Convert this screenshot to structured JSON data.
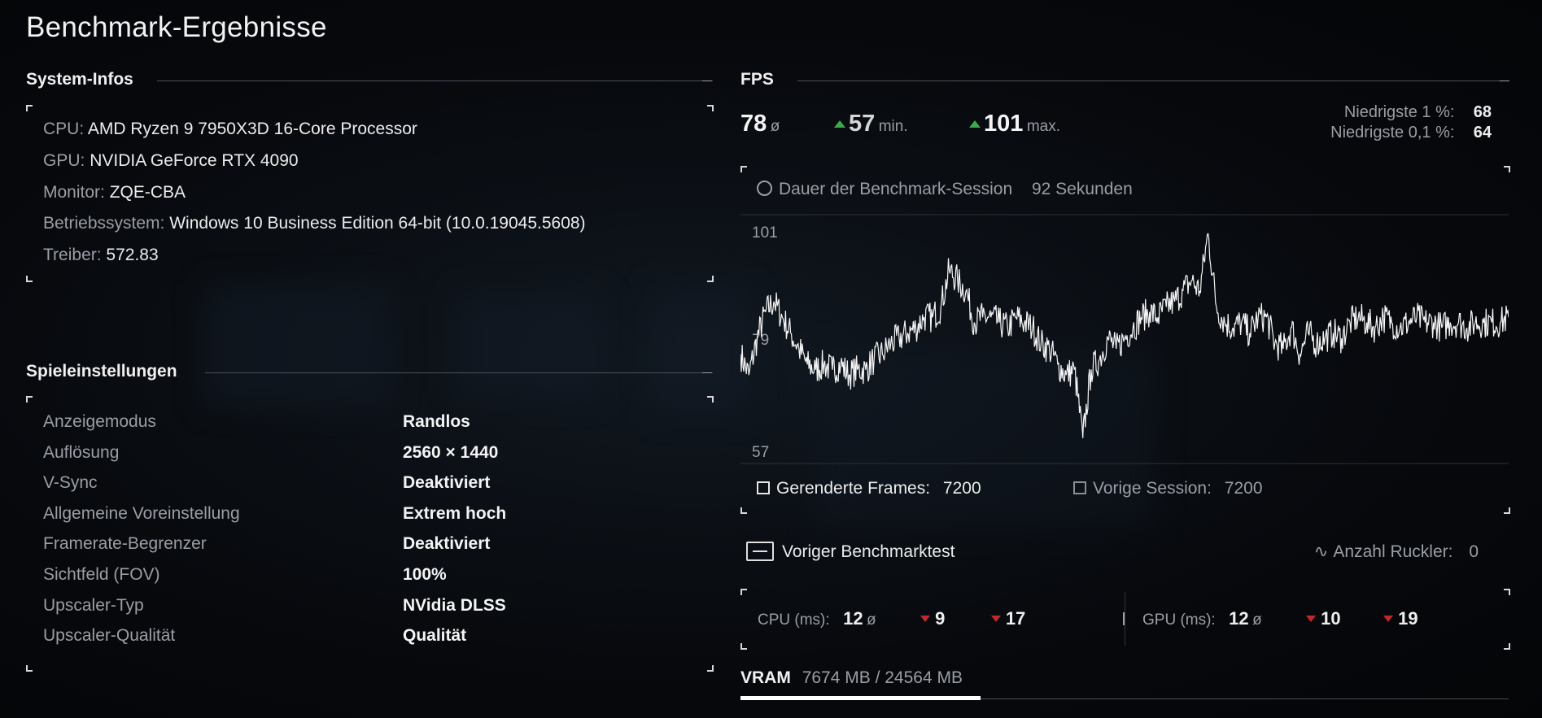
{
  "page_title": "Benchmark-Ergebnisse",
  "system": {
    "heading": "System-Infos",
    "rows": [
      {
        "label": "CPU:",
        "value": "AMD Ryzen 9 7950X3D 16-Core Processor"
      },
      {
        "label": "GPU:",
        "value": "NVIDIA GeForce RTX 4090"
      },
      {
        "label": "Monitor:",
        "value": "ZQE-CBA"
      },
      {
        "label": "Betriebssystem:",
        "value": "Windows 10 Business Edition 64-bit (10.0.19045.5608)"
      },
      {
        "label": "Treiber:",
        "value": "572.83"
      }
    ]
  },
  "settings": {
    "heading": "Spieleinstellungen",
    "rows": [
      {
        "label": "Anzeigemodus",
        "value": "Randlos"
      },
      {
        "label": "Auflösung",
        "value": "2560 × 1440"
      },
      {
        "label": "V-Sync",
        "value": "Deaktiviert"
      },
      {
        "label": "Allgemeine Voreinstellung",
        "value": "Extrem hoch"
      },
      {
        "label": "Framerate-Begrenzer",
        "value": "Deaktiviert"
      },
      {
        "label": "Sichtfeld (FOV)",
        "value": "100%"
      },
      {
        "label": "Upscaler-Typ",
        "value": "NVidia DLSS"
      },
      {
        "label": "Upscaler-Qualität",
        "value": "Qualität"
      }
    ]
  },
  "fps": {
    "heading": "FPS",
    "avg": "78",
    "avg_unit": "ø",
    "min": "57",
    "min_unit": "min.",
    "max": "101",
    "max_unit": "max.",
    "low1_label": "Niedrigste 1 %:",
    "low1_value": "68",
    "low01_label": "Niedrigste 0,1 %:",
    "low01_value": "64",
    "session_label": "Dauer der Benchmark-Session",
    "session_value": "92 Sekunden",
    "axis_top": "101",
    "axis_mid": "79",
    "axis_bottom": "57",
    "rendered_label": "Gerenderte Frames:",
    "rendered_value": "7200",
    "prev_label": "Vorige Session:",
    "prev_value": "7200"
  },
  "previous": {
    "button_label": "Voriger Benchmarktest",
    "stutter_label": "Anzahl Ruckler:",
    "stutter_value": "0"
  },
  "frametimes": {
    "cpu_label": "CPU (ms):",
    "cpu_avg": "12",
    "cpu_avg_unit": "ø",
    "cpu_low": "9",
    "cpu_high": "17",
    "gpu_label": "GPU (ms):",
    "gpu_avg": "12",
    "gpu_avg_unit": "ø",
    "gpu_low": "10",
    "gpu_high": "19"
  },
  "vram": {
    "label": "VRAM",
    "value": "7674 MB / 24564 MB",
    "used_fraction": 0.3124
  },
  "colors": {
    "up": "#3fa84e",
    "down": "#c0282c",
    "accent": "#ffffff"
  },
  "chart_data": {
    "type": "line",
    "title": "",
    "xlabel": "",
    "ylabel": "",
    "ylim": [
      57,
      101
    ],
    "yticks": [
      101,
      79,
      57
    ],
    "x_range_seconds": [
      0,
      92
    ],
    "series": [
      {
        "x": [
          0,
          1,
          2,
          3,
          4,
          5,
          6,
          7,
          8,
          9,
          10,
          11,
          12,
          13,
          14,
          15,
          16,
          17,
          18,
          19,
          20,
          21,
          22,
          23,
          24,
          25,
          26,
          27,
          28,
          29,
          30,
          31,
          32,
          33,
          34,
          35,
          36,
          37,
          38,
          39,
          40,
          41,
          42,
          43,
          44,
          45,
          46,
          47,
          48,
          49,
          50,
          51,
          52,
          53,
          54,
          55,
          56,
          57,
          58,
          59,
          60,
          61,
          62,
          63,
          64,
          65,
          66,
          67,
          68,
          69,
          70,
          71,
          72,
          73,
          74,
          75,
          76,
          77,
          78,
          79,
          80,
          81,
          82,
          83,
          84,
          85,
          86,
          87,
          88,
          89,
          90,
          91,
          92
        ],
        "values": [
          76,
          72,
          79,
          84,
          86,
          83,
          80,
          77,
          74,
          73,
          74,
          73,
          74,
          72,
          73,
          73,
          75,
          76,
          78,
          79,
          80,
          81,
          83,
          83,
          85,
          92,
          90,
          88,
          82,
          83,
          83,
          82,
          81,
          83,
          82,
          81,
          78,
          77,
          74,
          72,
          73,
          60,
          73,
          75,
          79,
          77,
          79,
          81,
          83,
          84,
          83,
          85,
          86,
          88,
          90,
          88,
          99,
          85,
          82,
          81,
          82,
          80,
          83,
          83,
          78,
          77,
          81,
          76,
          80,
          78,
          79,
          80,
          79,
          82,
          83,
          82,
          81,
          83,
          82,
          81,
          82,
          83,
          82,
          82,
          81,
          82,
          82,
          81,
          82,
          82,
          82,
          82,
          83
        ]
      }
    ]
  }
}
